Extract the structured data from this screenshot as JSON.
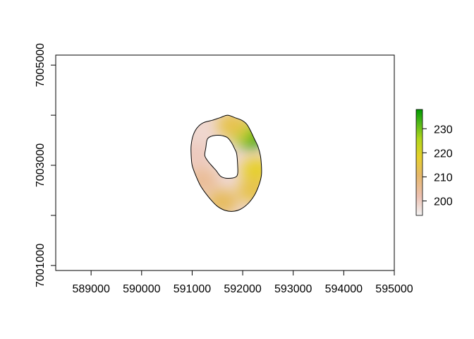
{
  "chart_data": {
    "type": "heatmap",
    "title": "",
    "xlabel": "",
    "ylabel": "",
    "xlim": [
      588300,
      595000
    ],
    "ylim": [
      7000900,
      7005200
    ],
    "x_ticks": [
      589000,
      590000,
      591000,
      592000,
      593000,
      594000,
      595000
    ],
    "x_tick_labels": [
      "589000",
      "590000",
      "591000",
      "592000",
      "593000",
      "594000",
      "595000"
    ],
    "y_ticks": [
      7001000,
      7003000,
      7005000
    ],
    "y_tick_labels": [
      "7001000",
      "7003000",
      "7005000"
    ],
    "y_minor_ticks": [
      7002000,
      7004000
    ],
    "legend": {
      "placement": "right",
      "range": [
        194,
        238
      ],
      "ticks": [
        200,
        210,
        220,
        230
      ],
      "tick_labels": [
        "200",
        "210",
        "220",
        "230"
      ],
      "colors": [
        "#f2f2f2",
        "#ecc0b1",
        "#e6b86a",
        "#e6d02c",
        "#b2d61c",
        "#4cb618",
        "#009a00"
      ]
    },
    "outer_boundary": [
      [
        591700,
        7004000
      ],
      [
        591850,
        7003950
      ],
      [
        591980,
        7003900
      ],
      [
        592080,
        7003820
      ],
      [
        592150,
        7003700
      ],
      [
        592230,
        7003530
      ],
      [
        592300,
        7003380
      ],
      [
        592350,
        7003200
      ],
      [
        592370,
        7003000
      ],
      [
        592370,
        7002800
      ],
      [
        592320,
        7002600
      ],
      [
        592230,
        7002400
      ],
      [
        592100,
        7002230
      ],
      [
        591950,
        7002120
      ],
      [
        591800,
        7002080
      ],
      [
        591650,
        7002100
      ],
      [
        591500,
        7002180
      ],
      [
        591380,
        7002300
      ],
      [
        591260,
        7002450
      ],
      [
        591160,
        7002600
      ],
      [
        591070,
        7002800
      ],
      [
        591000,
        7003000
      ],
      [
        590980,
        7003200
      ],
      [
        590980,
        7003400
      ],
      [
        591020,
        7003600
      ],
      [
        591100,
        7003750
      ],
      [
        591220,
        7003850
      ],
      [
        591400,
        7003900
      ],
      [
        591550,
        7003950
      ]
    ],
    "inner_boundary": [
      [
        591500,
        7003600
      ],
      [
        591600,
        7003590
      ],
      [
        591700,
        7003550
      ],
      [
        591780,
        7003450
      ],
      [
        591840,
        7003330
      ],
      [
        591880,
        7003230
      ],
      [
        591900,
        7003000
      ],
      [
        591900,
        7002830
      ],
      [
        591850,
        7002760
      ],
      [
        591700,
        7002740
      ],
      [
        591580,
        7002770
      ],
      [
        591520,
        7002830
      ],
      [
        591470,
        7002900
      ],
      [
        591380,
        7003000
      ],
      [
        591300,
        7003100
      ],
      [
        591250,
        7003200
      ],
      [
        591270,
        7003350
      ],
      [
        591300,
        7003520
      ],
      [
        591380,
        7003580
      ]
    ],
    "hotspots": [
      {
        "x": 592150,
        "y": 7003580,
        "value": 236
      },
      {
        "x": 591950,
        "y": 7003700,
        "value": 224
      },
      {
        "x": 591800,
        "y": 7003800,
        "value": 212
      },
      {
        "x": 592270,
        "y": 7002900,
        "value": 216
      },
      {
        "x": 592200,
        "y": 7002500,
        "value": 212
      },
      {
        "x": 591600,
        "y": 7002270,
        "value": 210
      },
      {
        "x": 591200,
        "y": 7002700,
        "value": 204
      },
      {
        "x": 591050,
        "y": 7003200,
        "value": 200
      }
    ]
  }
}
